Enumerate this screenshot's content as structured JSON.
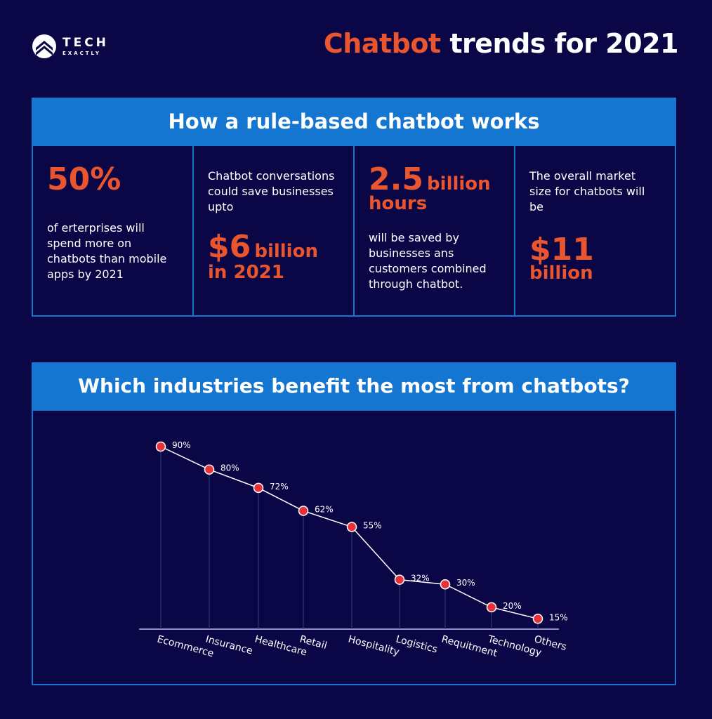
{
  "brand": {
    "name": "TECH",
    "sub": "EXACTLY"
  },
  "title": {
    "accent": "Chatbot",
    "rest": " trends for 2021"
  },
  "section1": {
    "header": "How a rule-based chatbot works",
    "stats": [
      {
        "big": "50%",
        "text": "of erterprises will spend more on chatbots than mobile apps by 2021"
      },
      {
        "text": "Chatbot conversations could save businesses upto",
        "big": "$6",
        "unit": "billion",
        "tail": "in 2021"
      },
      {
        "big": "2.5",
        "unit": "billion",
        "unit2": "hours",
        "text": "will be saved by businesses ans customers combined through chatbot."
      },
      {
        "text": "The overall market size for chatbots will be",
        "big": "$11",
        "unit": "billion"
      }
    ]
  },
  "section2": {
    "header": "Which industries benefit the most from chatbots?"
  },
  "colors": {
    "background": "#0b0646",
    "blue": "#1476d0",
    "orange": "#e8552e",
    "point": "#e8323a"
  },
  "chart_data": {
    "type": "line",
    "categories": [
      "Ecommerce",
      "Insurance",
      "Healthcare",
      "Retail",
      "Hospitality",
      "Logistics",
      "Requitment",
      "Technology",
      "Others"
    ],
    "values": [
      90,
      80,
      72,
      62,
      55,
      32,
      30,
      20,
      15
    ],
    "labels": [
      "90%",
      "80%",
      "72%",
      "62%",
      "55%",
      "32%",
      "30%",
      "20%",
      "15%"
    ],
    "grid": false
  }
}
